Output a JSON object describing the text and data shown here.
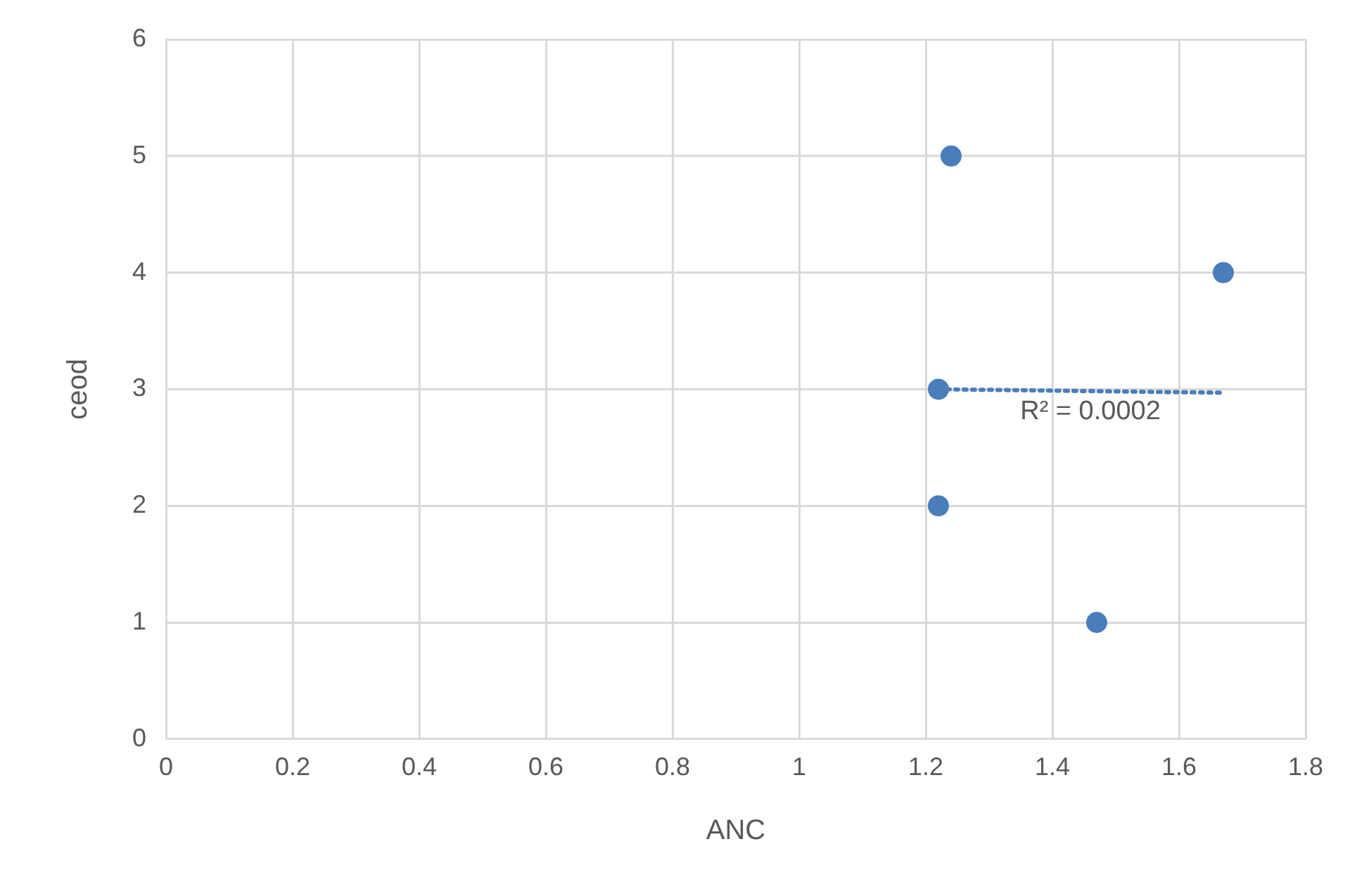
{
  "chart_data": {
    "type": "scatter",
    "xlabel": "ANC",
    "ylabel": "ceod",
    "x": [
      1.24,
      1.22,
      1.22,
      1.47,
      1.67
    ],
    "series": [
      {
        "color": "#4a7ebb",
        "values": [
          5,
          3,
          2,
          1,
          4
        ]
      },
      {
        "type": "line",
        "color": "#4a7ebb",
        "x": [
          1.22,
          1.67
        ],
        "values": [
          3.0,
          2.97
        ],
        "line_style": "dotted",
        "marker": "none"
      }
    ],
    "annotations": [
      {
        "text": "R² = 0.0002",
        "x": 1.46,
        "y": 2.97
      }
    ],
    "xlim": [
      0,
      1.8
    ],
    "xticks": [
      0,
      0.2,
      0.4,
      0.6,
      0.8,
      1,
      1.2,
      1.4,
      1.6,
      1.8
    ],
    "ylim": [
      0,
      6
    ],
    "yticks": [
      0,
      1,
      2,
      3,
      4,
      5,
      6
    ],
    "grid": true,
    "legend": false,
    "marker": "circle"
  }
}
